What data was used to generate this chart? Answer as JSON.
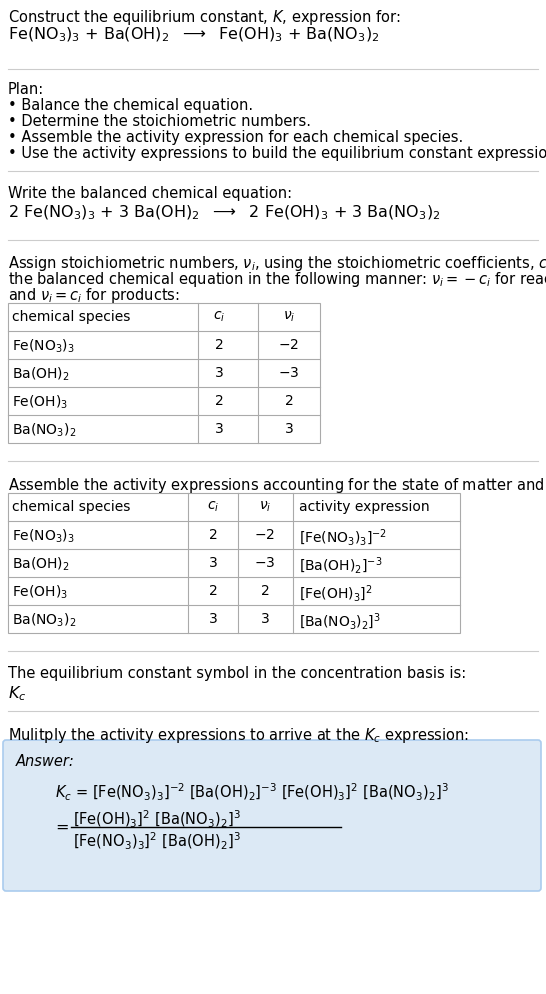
{
  "bg_color": "#ffffff",
  "light_blue_bg": "#dce9f5",
  "border_color": "#aaccee",
  "text_color": "#000000",
  "gray_line_color": "#cccccc",
  "table_line_color": "#aaaaaa",
  "section1_title": "Construct the equilibrium constant, $K$, expression for:",
  "section1_equation": "Fe(NO$_3$)$_3$ + Ba(OH)$_2$  $\\longrightarrow$  Fe(OH)$_3$ + Ba(NO$_3$)$_2$",
  "plan_title": "Plan:",
  "plan_bullets": [
    "• Balance the chemical equation.",
    "• Determine the stoichiometric numbers.",
    "• Assemble the activity expression for each chemical species.",
    "• Use the activity expressions to build the equilibrium constant expression."
  ],
  "balanced_title": "Write the balanced chemical equation:",
  "balanced_eq": "2 Fe(NO$_3$)$_3$ + 3 Ba(OH)$_2$  $\\longrightarrow$  2 Fe(OH)$_3$ + 3 Ba(NO$_3$)$_2$",
  "stoich_line1": "Assign stoichiometric numbers, $\\nu_i$, using the stoichiometric coefficients, $c_i$, from",
  "stoich_line2": "the balanced chemical equation in the following manner: $\\nu_i = -c_i$ for reactants",
  "stoich_line3": "and $\\nu_i = c_i$ for products:",
  "table1_headers": [
    "chemical species",
    "$c_i$",
    "$\\nu_i$"
  ],
  "table1_rows": [
    [
      "Fe(NO$_3$)$_3$",
      "2",
      "$-2$"
    ],
    [
      "Ba(OH)$_2$",
      "3",
      "$-3$"
    ],
    [
      "Fe(OH)$_3$",
      "2",
      "2"
    ],
    [
      "Ba(NO$_3$)$_2$",
      "3",
      "3"
    ]
  ],
  "activity_intro": "Assemble the activity expressions accounting for the state of matter and $\\nu_i$:",
  "table2_headers": [
    "chemical species",
    "$c_i$",
    "$\\nu_i$",
    "activity expression"
  ],
  "table2_rows": [
    [
      "Fe(NO$_3$)$_3$",
      "2",
      "$-2$",
      "[Fe(NO$_3$)$_3$]$^{-2}$"
    ],
    [
      "Ba(OH)$_2$",
      "3",
      "$-3$",
      "[Ba(OH)$_2$]$^{-3}$"
    ],
    [
      "Fe(OH)$_3$",
      "2",
      "2",
      "[Fe(OH)$_3$]$^2$"
    ],
    [
      "Ba(NO$_3$)$_2$",
      "3",
      "3",
      "[Ba(NO$_3$)$_2$]$^3$"
    ]
  ],
  "Kc_intro": "The equilibrium constant symbol in the concentration basis is:",
  "Kc_symbol": "$K_c$",
  "multiply_intro": "Mulitply the activity expressions to arrive at the $K_c$ expression:",
  "answer_label": "Answer:",
  "answer_line1": "$K_c$ = [Fe(NO$_3$)$_3$]$^{-2}$ [Ba(OH)$_2$]$^{-3}$ [Fe(OH)$_3$]$^2$ [Ba(NO$_3$)$_2$]$^3$",
  "answer_eq_sign": "=",
  "answer_num": "[Fe(OH)$_3$]$^2$ [Ba(NO$_3$)$_2$]$^3$",
  "answer_den": "[Fe(NO$_3$)$_3$]$^2$ [Ba(OH)$_2$]$^3$"
}
